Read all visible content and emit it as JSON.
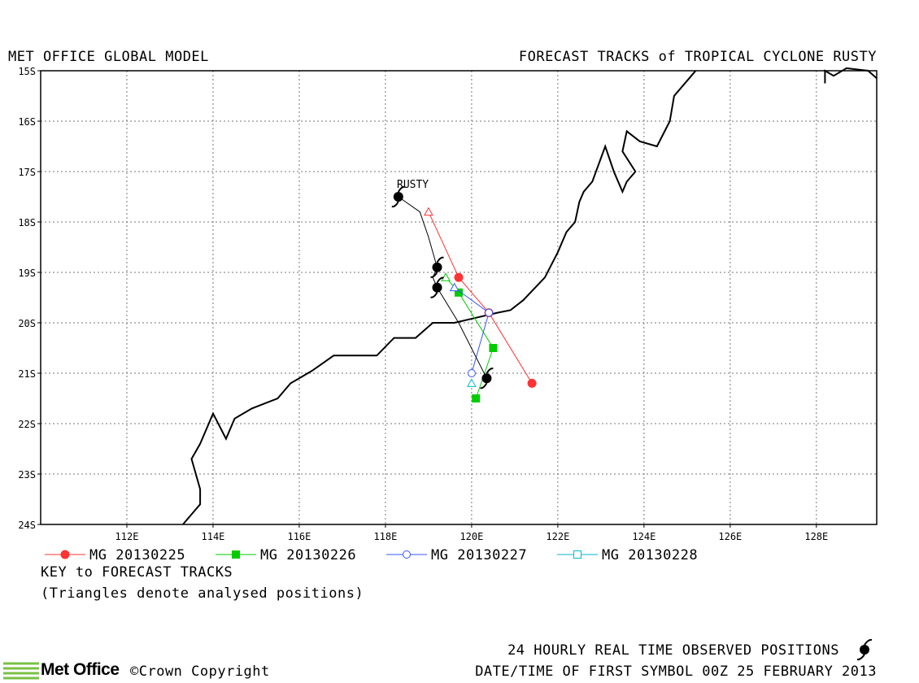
{
  "header": {
    "left_title": "MET OFFICE GLOBAL MODEL",
    "right_title": "FORECAST TRACKS of TROPICAL CYCLONE RUSTY"
  },
  "map": {
    "lon_range": [
      110,
      129.4
    ],
    "lat_range": [
      15,
      24
    ],
    "lon_ticks": [
      "112E",
      "114E",
      "116E",
      "118E",
      "120E",
      "122E",
      "124E",
      "126E",
      "128E"
    ],
    "lat_ticks": [
      "15S",
      "16S",
      "17S",
      "18S",
      "19S",
      "20S",
      "21S",
      "22S",
      "23S",
      "24S"
    ],
    "grid": "dotted",
    "storm_label": "RUSTY",
    "coastline": [
      [
        113.3,
        24.0
      ],
      [
        113.5,
        23.8
      ],
      [
        113.7,
        23.6
      ],
      [
        113.7,
        23.5
      ],
      [
        113.7,
        23.3
      ],
      [
        113.6,
        23.0
      ],
      [
        113.5,
        22.7
      ],
      [
        113.7,
        22.4
      ],
      [
        113.8,
        22.2
      ],
      [
        114.0,
        21.8
      ],
      [
        114.3,
        22.3
      ],
      [
        114.5,
        21.9
      ],
      [
        114.9,
        21.7
      ],
      [
        115.2,
        21.6
      ],
      [
        115.5,
        21.5
      ],
      [
        115.8,
        21.2
      ],
      [
        116.0,
        21.1
      ],
      [
        116.3,
        20.95
      ],
      [
        116.8,
        20.65
      ],
      [
        117.2,
        20.65
      ],
      [
        117.8,
        20.65
      ],
      [
        118.2,
        20.3
      ],
      [
        118.7,
        20.3
      ],
      [
        119.1,
        20.0
      ],
      [
        119.6,
        20.0
      ],
      [
        120.1,
        19.9
      ],
      [
        120.6,
        19.8
      ],
      [
        120.9,
        19.75
      ],
      [
        121.2,
        19.55
      ],
      [
        121.7,
        19.1
      ],
      [
        122.0,
        18.6
      ],
      [
        122.2,
        18.2
      ],
      [
        122.4,
        18.0
      ],
      [
        122.5,
        17.6
      ],
      [
        122.6,
        17.4
      ],
      [
        122.8,
        17.2
      ],
      [
        123.1,
        16.5
      ],
      [
        123.3,
        17.0
      ],
      [
        123.5,
        17.4
      ],
      [
        123.6,
        17.2
      ],
      [
        123.8,
        17.0
      ],
      [
        123.5,
        16.6
      ],
      [
        123.6,
        16.2
      ],
      [
        123.9,
        16.4
      ],
      [
        124.3,
        16.5
      ],
      [
        124.6,
        16.0
      ],
      [
        124.7,
        15.5
      ],
      [
        125.1,
        15.1
      ],
      [
        125.2,
        15.0
      ]
    ],
    "coastline_ne": [
      [
        128.2,
        15.25
      ],
      [
        128.2,
        15.0
      ],
      [
        128.4,
        15.1
      ],
      [
        128.7,
        14.95
      ],
      [
        129.2,
        15.0
      ],
      [
        129.4,
        15.15
      ]
    ],
    "observed_positions": [
      [
        118.3,
        17.5
      ],
      [
        119.2,
        18.9
      ],
      [
        119.2,
        19.3
      ],
      [
        120.35,
        21.1
      ]
    ],
    "observed_track": [
      [
        118.3,
        17.5
      ],
      [
        118.8,
        17.8
      ],
      [
        119.0,
        18.3
      ],
      [
        119.2,
        18.9
      ],
      [
        119.1,
        19.1
      ],
      [
        119.2,
        19.3
      ],
      [
        119.7,
        20.0
      ],
      [
        120.35,
        21.1
      ]
    ]
  },
  "chart_data": {
    "type": "line",
    "x_unit": "longitude (deg E)",
    "y_unit": "latitude (deg S)",
    "series": [
      {
        "name": "MG 20130225",
        "color": "#ff3333",
        "marker": "circle-filled",
        "points": [
          [
            119.0,
            17.8
          ],
          [
            119.7,
            19.1
          ],
          [
            120.4,
            19.8
          ],
          [
            121.4,
            21.2
          ]
        ],
        "analysed_points": 1
      },
      {
        "name": "MG 20130226",
        "color": "#00cc00",
        "marker": "square-filled",
        "points": [
          [
            119.4,
            19.1
          ],
          [
            119.7,
            19.4
          ],
          [
            120.5,
            20.5
          ],
          [
            120.1,
            21.5
          ]
        ],
        "analysed_points": 1
      },
      {
        "name": "MG 20130227",
        "color": "#3355ff",
        "marker": "circle-open",
        "points": [
          [
            119.6,
            19.3
          ],
          [
            120.4,
            19.8
          ],
          [
            120.0,
            21.0
          ]
        ],
        "analysed_points": 1
      },
      {
        "name": "MG 20130228",
        "color": "#00bbcc",
        "marker": "square-open",
        "points": [
          [
            120.0,
            21.2
          ]
        ],
        "analysed_points": 1
      }
    ]
  },
  "legend": {
    "items": [
      {
        "label": "MG 20130225",
        "color": "#ff3333"
      },
      {
        "label": "MG 20130226",
        "color": "#00cc00"
      },
      {
        "label": "MG 20130227",
        "color": "#3355ff"
      },
      {
        "label": "MG 20130228",
        "color": "#00bbcc"
      }
    ],
    "key_title": "KEY to FORECAST TRACKS",
    "key_note": "(Triangles denote analysed positions)"
  },
  "footer": {
    "logo_text": "Met Office",
    "copyright": "©Crown Copyright",
    "observed_note": "24 HOURLY REAL TIME OBSERVED POSITIONS",
    "datetime": "DATE/TIME OF FIRST SYMBOL 00Z 25 FEBRUARY 2013"
  }
}
